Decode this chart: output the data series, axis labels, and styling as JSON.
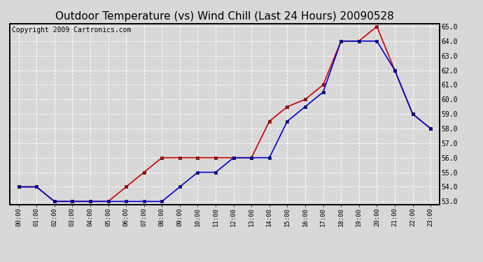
{
  "title": "Outdoor Temperature (vs) Wind Chill (Last 24 Hours) 20090528",
  "copyright_text": "Copyright 2009 Cartronics.com",
  "hours": [
    "00:00",
    "01:00",
    "02:00",
    "03:00",
    "04:00",
    "05:00",
    "06:00",
    "07:00",
    "08:00",
    "09:00",
    "10:00",
    "11:00",
    "12:00",
    "13:00",
    "14:00",
    "15:00",
    "16:00",
    "17:00",
    "18:00",
    "19:00",
    "20:00",
    "21:00",
    "22:00",
    "23:00"
  ],
  "temp": [
    54.0,
    54.0,
    53.0,
    53.0,
    53.0,
    53.0,
    54.0,
    55.0,
    56.0,
    56.0,
    56.0,
    56.0,
    56.0,
    56.0,
    58.5,
    59.5,
    60.0,
    61.0,
    64.0,
    64.0,
    65.0,
    62.0,
    59.0,
    58.0
  ],
  "wind_chill": [
    54.0,
    54.0,
    53.0,
    53.0,
    53.0,
    53.0,
    53.0,
    53.0,
    53.0,
    54.0,
    55.0,
    55.0,
    56.0,
    56.0,
    56.0,
    58.5,
    59.5,
    60.5,
    64.0,
    64.0,
    64.0,
    62.0,
    59.0,
    58.0
  ],
  "temp_color": "#cc0000",
  "wind_chill_color": "#0000cc",
  "bg_color": "#d8d8d8",
  "plot_bg_color": "#d8d8d8",
  "grid_color": "#ffffff",
  "ylim_min": 52.8,
  "ylim_max": 65.2,
  "title_fontsize": 11,
  "copyright_fontsize": 7,
  "marker": "s",
  "markersize": 3,
  "linewidth": 1.2
}
